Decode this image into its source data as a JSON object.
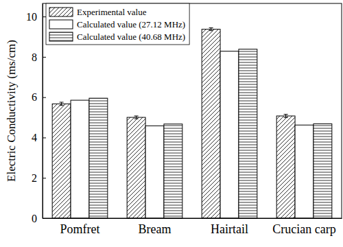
{
  "chart_data": {
    "type": "bar",
    "y_label": "Electric Conductivity (ms/cm)",
    "categories": [
      "Pomfret",
      "Bream",
      "Hairtail",
      "Crucian carp"
    ],
    "series": [
      {
        "name": "Experimental value",
        "color": "#000000",
        "values": [
          5.67,
          5.0,
          9.37,
          5.07
        ],
        "errors": [
          0.08,
          0.07,
          0.07,
          0.08
        ]
      },
      {
        "name": "Calculated value (27.12 MHz)",
        "color": "#000000",
        "values": [
          5.85,
          4.58,
          8.28,
          4.62
        ]
      },
      {
        "name": "Calculated value (40.68 MHz)",
        "color": "#000000",
        "values": [
          5.95,
          4.67,
          8.38,
          4.68
        ]
      }
    ],
    "ylim": [
      0,
      10.65
    ],
    "yticks": [
      0,
      2,
      4,
      6,
      8,
      10
    ],
    "legend": "top-left",
    "grid": false
  }
}
